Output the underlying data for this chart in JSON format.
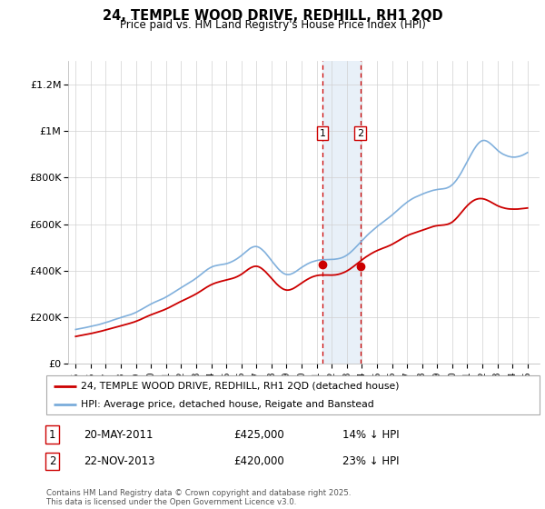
{
  "title": "24, TEMPLE WOOD DRIVE, REDHILL, RH1 2QD",
  "subtitle": "Price paid vs. HM Land Registry's House Price Index (HPI)",
  "legend_line1": "24, TEMPLE WOOD DRIVE, REDHILL, RH1 2QD (detached house)",
  "legend_line2": "HPI: Average price, detached house, Reigate and Banstead",
  "transaction1_date": "20-MAY-2011",
  "transaction1_price": "£425,000",
  "transaction1_hpi": "14% ↓ HPI",
  "transaction2_date": "22-NOV-2013",
  "transaction2_price": "£420,000",
  "transaction2_hpi": "23% ↓ HPI",
  "footer": "Contains HM Land Registry data © Crown copyright and database right 2025.\nThis data is licensed under the Open Government Licence v3.0.",
  "red_color": "#cc0000",
  "blue_color": "#7aacdb",
  "highlight_color": "#e8f0f8",
  "vline_color": "#cc0000",
  "ylim": [
    0,
    1300000
  ],
  "yticks": [
    0,
    200000,
    400000,
    600000,
    800000,
    1000000,
    1200000
  ],
  "ytick_labels": [
    "£0",
    "£200K",
    "£400K",
    "£600K",
    "£800K",
    "£1M",
    "£1.2M"
  ],
  "transaction1_x": 2011.38,
  "transaction1_y": 425000,
  "transaction2_x": 2013.9,
  "transaction2_y": 420000,
  "shade_x_start": 2011.38,
  "shade_x_end": 2013.9,
  "xlim_left": 1994.5,
  "xlim_right": 2025.8
}
